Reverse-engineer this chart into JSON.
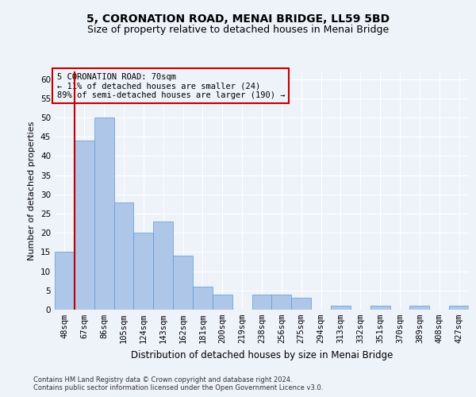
{
  "title1": "5, CORONATION ROAD, MENAI BRIDGE, LL59 5BD",
  "title2": "Size of property relative to detached houses in Menai Bridge",
  "xlabel": "Distribution of detached houses by size in Menai Bridge",
  "ylabel": "Number of detached properties",
  "categories": [
    "48sqm",
    "67sqm",
    "86sqm",
    "105sqm",
    "124sqm",
    "143sqm",
    "162sqm",
    "181sqm",
    "200sqm",
    "219sqm",
    "238sqm",
    "256sqm",
    "275sqm",
    "294sqm",
    "313sqm",
    "332sqm",
    "351sqm",
    "370sqm",
    "389sqm",
    "408sqm",
    "427sqm"
  ],
  "values": [
    15,
    44,
    50,
    28,
    20,
    23,
    14,
    6,
    4,
    0,
    4,
    4,
    3,
    0,
    1,
    0,
    1,
    0,
    1,
    0,
    1
  ],
  "bar_color": "#aec6e8",
  "bar_edge_color": "#5b9bd5",
  "highlight_color": "#c00000",
  "highlight_bar_index": 1,
  "annotation_title": "5 CORONATION ROAD: 70sqm",
  "annotation_line1": "← 11% of detached houses are smaller (24)",
  "annotation_line2": "89% of semi-detached houses are larger (190) →",
  "ylim": [
    0,
    62
  ],
  "yticks": [
    0,
    5,
    10,
    15,
    20,
    25,
    30,
    35,
    40,
    45,
    50,
    55,
    60
  ],
  "footer1": "Contains HM Land Registry data © Crown copyright and database right 2024.",
  "footer2": "Contains public sector information licensed under the Open Government Licence v3.0.",
  "bg_color": "#eef2f9",
  "grid_color": "#ffffff",
  "title1_fontsize": 10,
  "title2_fontsize": 9,
  "xlabel_fontsize": 8.5,
  "ylabel_fontsize": 8,
  "tick_fontsize": 7.5,
  "annotation_fontsize": 7.5,
  "footer_fontsize": 6
}
